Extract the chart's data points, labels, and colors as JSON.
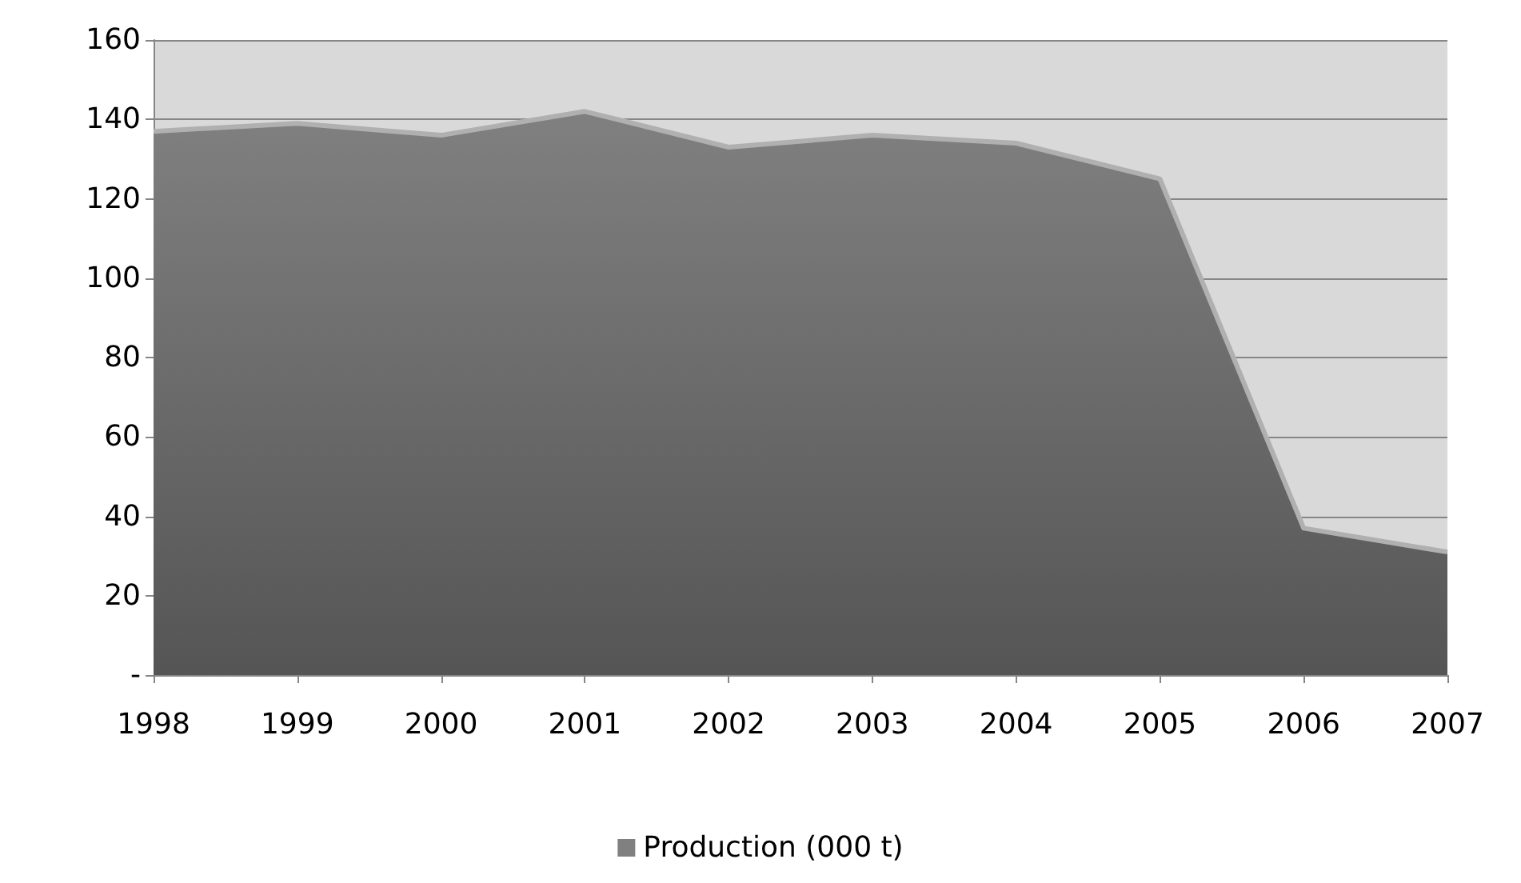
{
  "chart_data": {
    "type": "area",
    "categories": [
      "1998",
      "1999",
      "2000",
      "2001",
      "2002",
      "2003",
      "2004",
      "2005",
      "2006",
      "2007"
    ],
    "series": [
      {
        "name": "Production (000 t)",
        "color": "#808080",
        "values": [
          137,
          139,
          136,
          142,
          133,
          136,
          134,
          125,
          37,
          31
        ]
      }
    ],
    "ylim": [
      0,
      160
    ],
    "yticks": [
      {
        "value": 0,
        "label": "-"
      },
      20,
      40,
      60,
      80,
      100,
      120,
      140,
      160
    ],
    "grid": "y",
    "legend": "bottom"
  }
}
